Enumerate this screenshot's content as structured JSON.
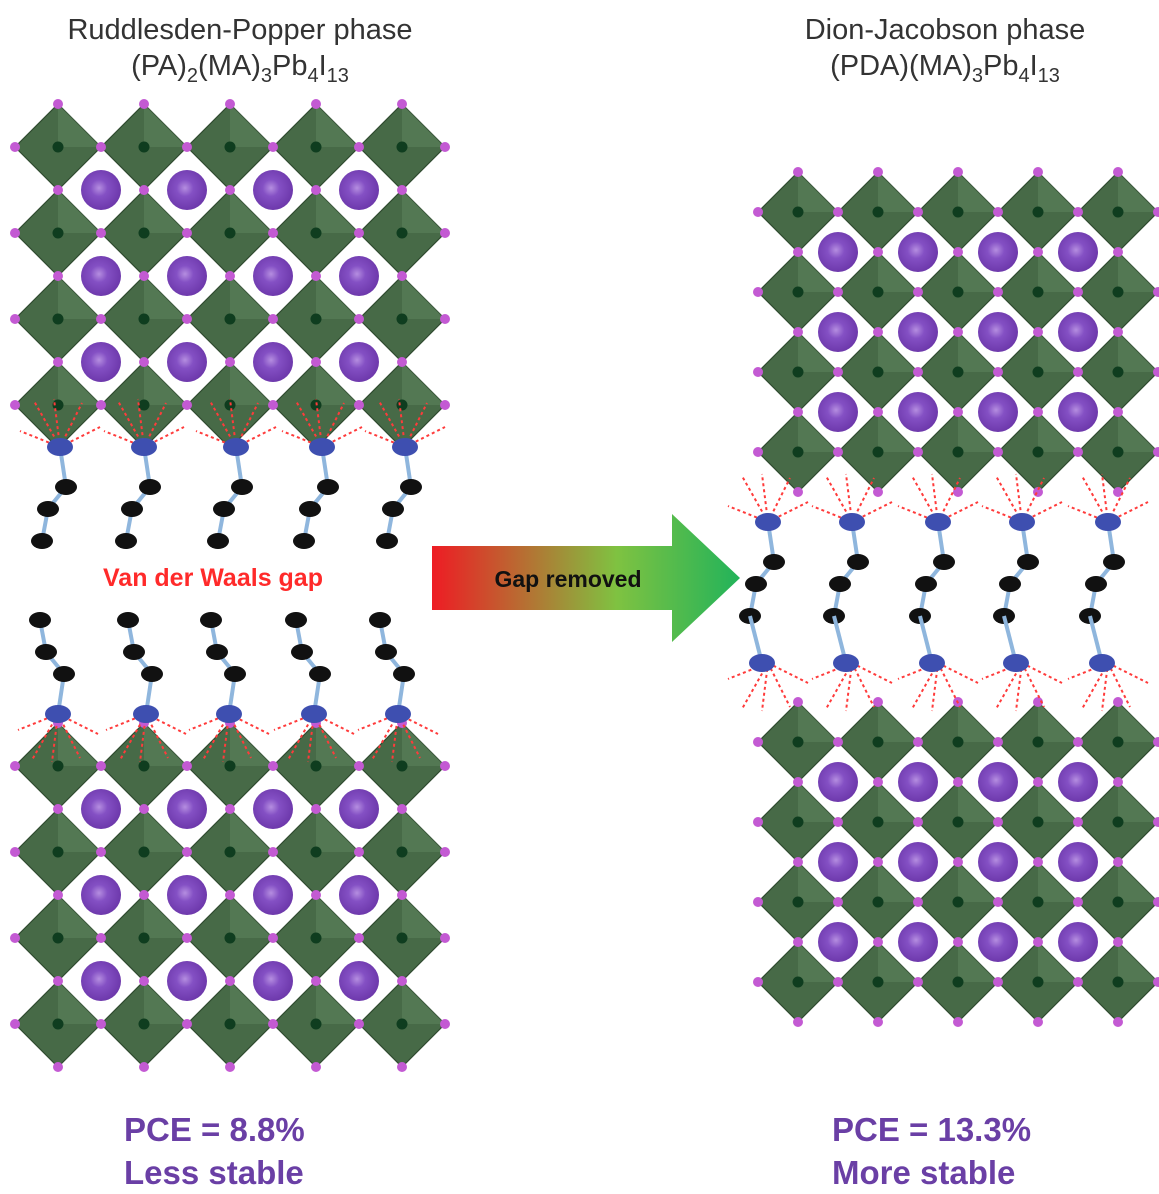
{
  "left": {
    "phase_name": "Ruddlesden-Popper phase",
    "formula": [
      {
        "t": "(PA)"
      },
      {
        "t": "2",
        "sub": true
      },
      {
        "t": "(MA)"
      },
      {
        "t": "3",
        "sub": true
      },
      {
        "t": "Pb"
      },
      {
        "t": "4",
        "sub": true
      },
      {
        "t": "I"
      },
      {
        "t": "13",
        "sub": true
      }
    ],
    "gap_label": "Van der Waals gap",
    "pce": "PCE = 8.8%",
    "stability": "Less stable"
  },
  "right": {
    "phase_name": "Dion-Jacobson phase",
    "formula": [
      {
        "t": "(PDA)(MA)"
      },
      {
        "t": "3",
        "sub": true
      },
      {
        "t": "Pb"
      },
      {
        "t": "4",
        "sub": true
      },
      {
        "t": "I"
      },
      {
        "t": "13",
        "sub": true
      }
    ],
    "pce": "PCE = 13.3%",
    "stability": "More stable"
  },
  "arrow": {
    "label": "Gap removed",
    "gradient": [
      "#ee1c24",
      "#7fc241",
      "#22b35a"
    ]
  },
  "colors": {
    "octahedron": "#476a47",
    "octahedron_light": "#5d845c",
    "iodide": "#c35ad3",
    "cation": "#7a45b8",
    "nitrogen": "#3e4fb0",
    "carbon": "#111111",
    "bond": "#8fb6dd",
    "hbond": "#ff3b3b"
  }
}
